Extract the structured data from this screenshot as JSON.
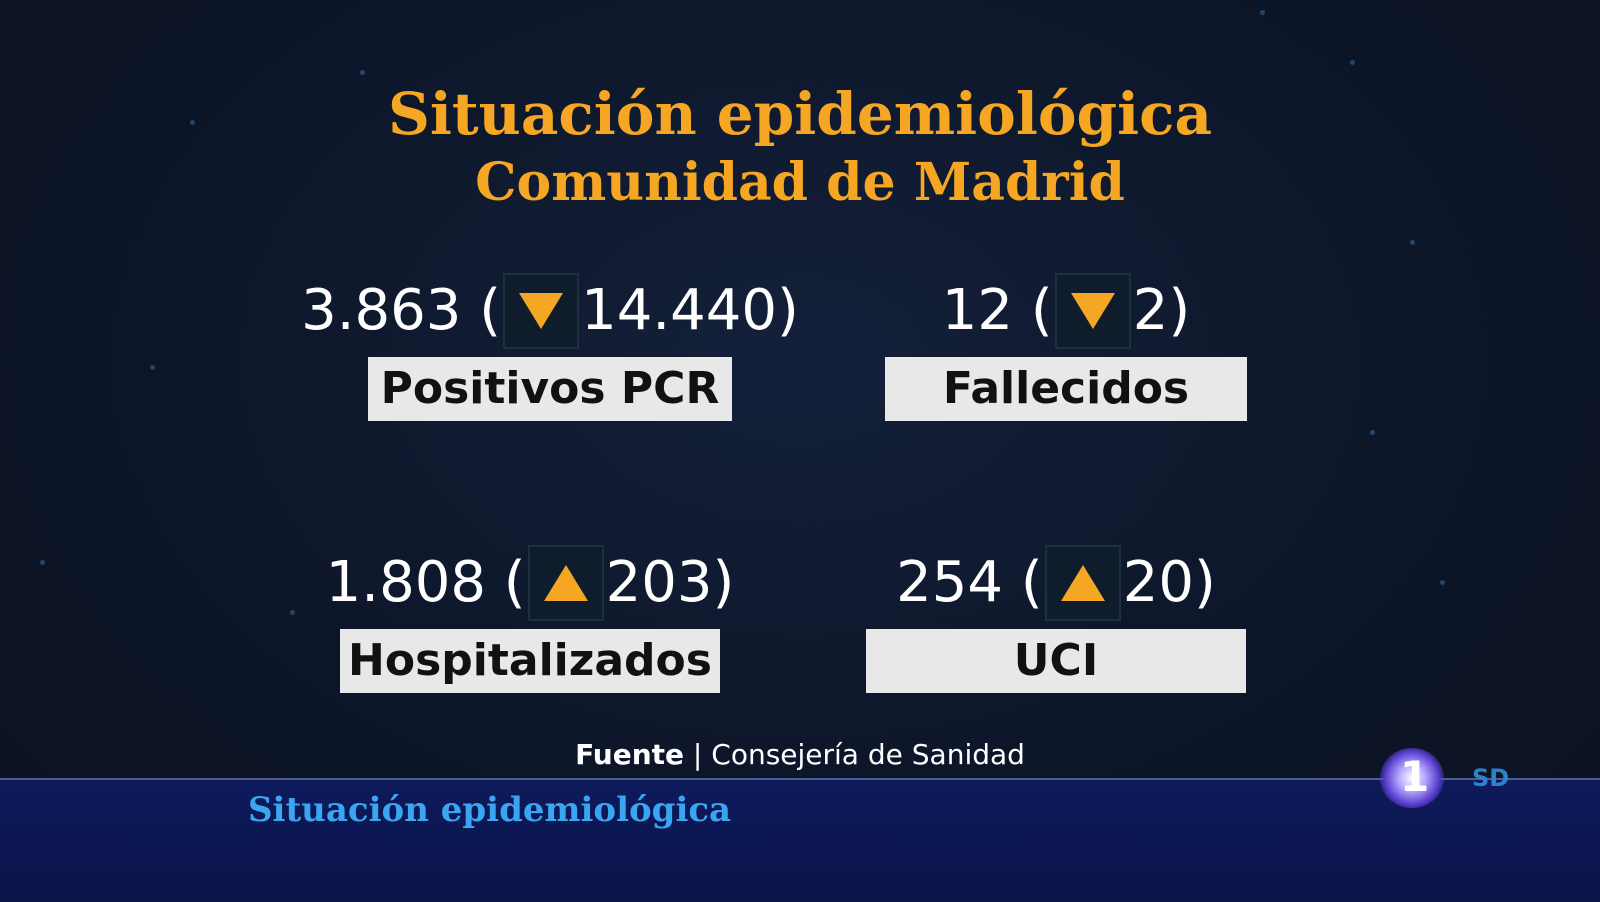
{
  "title": {
    "line1": "Situación epidemiológica",
    "line2": "Comunidad de Madrid"
  },
  "stats": [
    {
      "value": "3.863 (",
      "change": "14.440)",
      "direction": "down",
      "label": "Positivos PCR"
    },
    {
      "value": "12 (",
      "change": "2)",
      "direction": "down",
      "label": "Fallecidos"
    },
    {
      "value": "1.808 (",
      "change": "203)",
      "direction": "up",
      "label": "Hospitalizados"
    },
    {
      "value": "254 (",
      "change": "20)",
      "direction": "up",
      "label": "UCI"
    }
  ],
  "source": {
    "prefix": "Fuente",
    "separator": " | ",
    "name": "Consejería de Sanidad"
  },
  "lower_third": {
    "text": "Situación epidemiológica"
  },
  "channel": {
    "number": "1",
    "quality": "SD"
  },
  "colors": {
    "accent": "#f5a623",
    "background": "#0d1629",
    "label_bg": "#e8e8e8",
    "lower_bar": "#0e1a5c",
    "lower_text": "#3aa6f2"
  }
}
